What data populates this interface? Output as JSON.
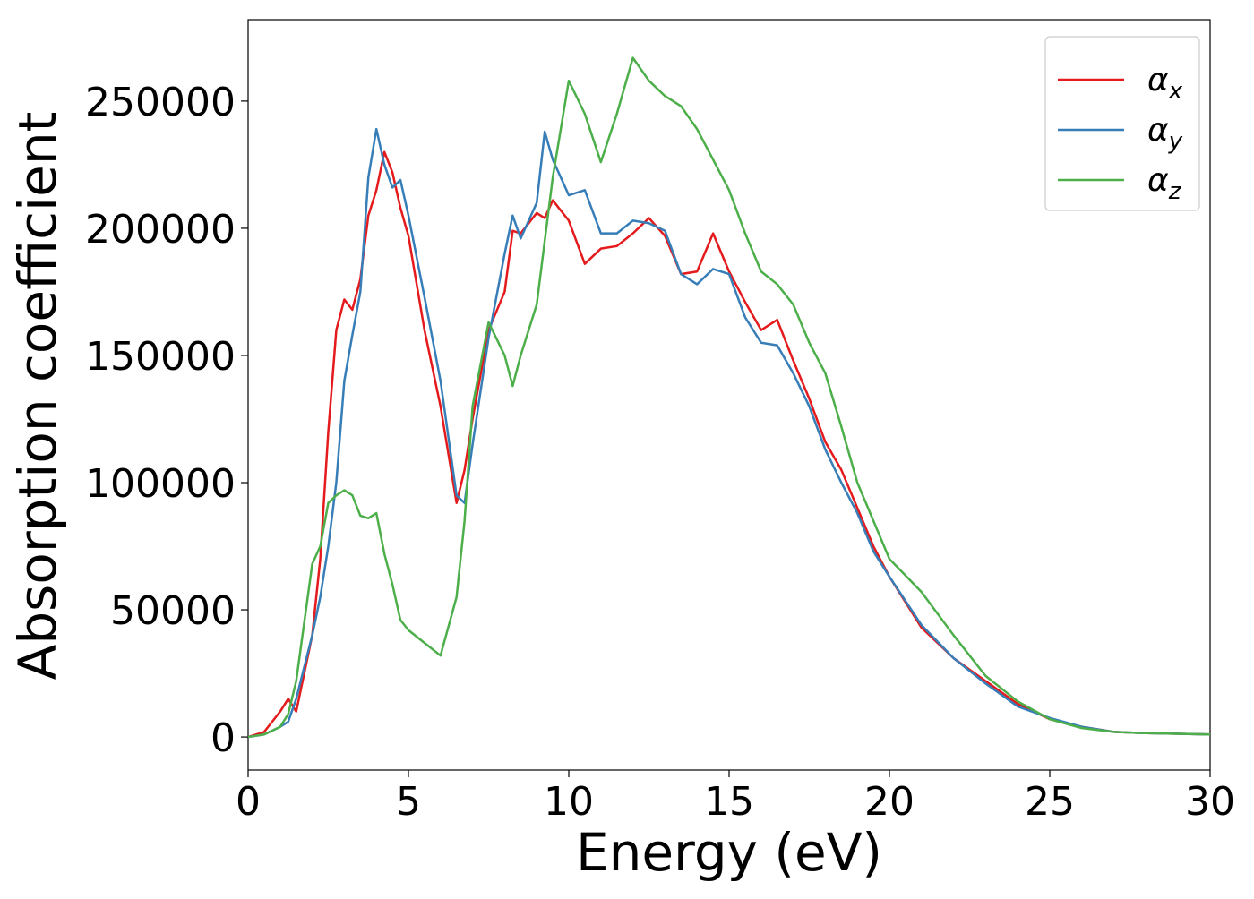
{
  "chart_data": {
    "type": "line",
    "x_label": "Energy (eV)",
    "y_label": "Absorption coefficient",
    "x": [
      0,
      0.5,
      1,
      1.25,
      1.5,
      2,
      2.25,
      2.5,
      2.75,
      3,
      3.25,
      3.5,
      3.75,
      4,
      4.25,
      4.5,
      4.75,
      5,
      5.5,
      6,
      6.5,
      6.75,
      7,
      7.5,
      8,
      8.25,
      8.5,
      9,
      9.25,
      9.5,
      10,
      10.5,
      11,
      11.5,
      12,
      12.5,
      13,
      13.5,
      14,
      14.5,
      15,
      15.5,
      16,
      16.5,
      17,
      17.5,
      18,
      18.5,
      19,
      19.5,
      20,
      21,
      22,
      23,
      24,
      25,
      26,
      27,
      28,
      30
    ],
    "series": [
      {
        "name": "αx",
        "color": "#e41a1c",
        "values": [
          0,
          2000,
          10000,
          15000,
          10000,
          40000,
          70000,
          120000,
          160000,
          172000,
          168000,
          180000,
          205000,
          215000,
          230000,
          222000,
          208000,
          197000,
          160000,
          130000,
          92000,
          105000,
          125000,
          160000,
          175000,
          199000,
          198000,
          206000,
          204000,
          211000,
          203000,
          186000,
          192000,
          193000,
          198000,
          204000,
          197000,
          182000,
          183000,
          198000,
          183000,
          171000,
          160000,
          164000,
          148000,
          133000,
          116000,
          105000,
          90000,
          75000,
          63000,
          43000,
          31000,
          22000,
          13000,
          7000,
          4000,
          2000,
          1500,
          1000
        ]
      },
      {
        "name": "αy",
        "color": "#377eb8",
        "values": [
          0,
          1000,
          4000,
          6000,
          15000,
          40000,
          55000,
          75000,
          100000,
          140000,
          158000,
          175000,
          220000,
          239000,
          225000,
          216000,
          219000,
          205000,
          173000,
          140000,
          95000,
          92000,
          115000,
          157000,
          190000,
          205000,
          196000,
          210000,
          238000,
          227000,
          213000,
          215000,
          198000,
          198000,
          203000,
          202000,
          199000,
          182000,
          178000,
          184000,
          182000,
          165000,
          155000,
          154000,
          143000,
          130000,
          113000,
          100000,
          88000,
          73000,
          63000,
          44000,
          31000,
          21000,
          12000,
          7500,
          4000,
          2000,
          1500,
          1000
        ]
      },
      {
        "name": "αz",
        "color": "#4daf4a",
        "values": [
          0,
          1000,
          4000,
          9000,
          22000,
          68000,
          75000,
          92000,
          95000,
          97000,
          95000,
          87000,
          86000,
          88000,
          72000,
          60000,
          46000,
          42000,
          37000,
          32000,
          55000,
          85000,
          130000,
          163000,
          150000,
          138000,
          150000,
          170000,
          195000,
          220000,
          258000,
          245000,
          226000,
          245000,
          267000,
          258000,
          252000,
          248000,
          239000,
          227000,
          215000,
          198000,
          183000,
          178000,
          170000,
          155000,
          143000,
          122000,
          100000,
          85000,
          70000,
          57000,
          40000,
          24000,
          14000,
          7000,
          3500,
          2000,
          1500,
          1000
        ]
      }
    ],
    "xlim": [
      0,
      30
    ],
    "xticks": [
      0,
      5,
      10,
      15,
      20,
      25,
      30
    ],
    "ylim": [
      -13000,
      282000
    ],
    "yticks": [
      0,
      50000,
      100000,
      150000,
      200000,
      250000
    ],
    "legend": "upper right"
  }
}
